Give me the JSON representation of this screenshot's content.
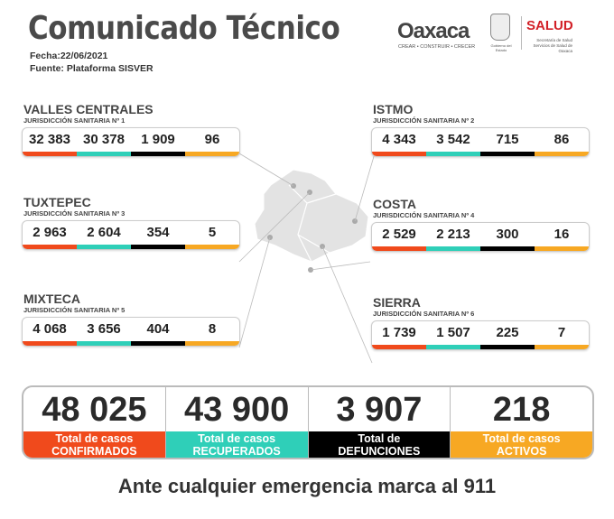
{
  "header": {
    "title": "Comunicado Técnico",
    "fecha": "Fecha:22/06/2021",
    "fuente": "Fuente: Plataforma SISVER"
  },
  "logos": {
    "oaxaca": "Oaxaca",
    "oaxaca_tagline": "CREAR • CONSTRUIR • CRECER",
    "gobierno": "Gobierno del Estado",
    "salud": "SALUD",
    "salud_sub": "Secretaría de Salud Servicios de Salud de Oaxaca"
  },
  "colors": {
    "confirmados": "#f04a1c",
    "recuperados": "#2fcfb8",
    "defunciones": "#000000",
    "activos": "#f7a823"
  },
  "regions": [
    {
      "name": "VALLES CENTRALES",
      "sub": "JURISDICCIÓN SANITARIA Nº 1",
      "values": [
        "32 383",
        "30 378",
        "1 909",
        "96"
      ]
    },
    {
      "name": "ISTMO",
      "sub": "JURISDICCIÓN SANITARIA Nº 2",
      "values": [
        "4 343",
        "3 542",
        "715",
        "86"
      ]
    },
    {
      "name": "TUXTEPEC",
      "sub": "JURISDICCIÓN SANITARIA Nº 3",
      "values": [
        "2 963",
        "2 604",
        "354",
        "5"
      ]
    },
    {
      "name": "COSTA",
      "sub": "JURISDICCIÓN SANITARIA Nº 4",
      "values": [
        "2 529",
        "2 213",
        "300",
        "16"
      ]
    },
    {
      "name": "MIXTECA",
      "sub": "JURISDICCIÓN SANITARIA Nº 5",
      "values": [
        "4 068",
        "3 656",
        "404",
        "8"
      ]
    },
    {
      "name": "SIERRA",
      "sub": "JURISDICCIÓN SANITARIA Nº 6",
      "values": [
        "1 739",
        "1 507",
        "225",
        "7"
      ]
    }
  ],
  "totals": [
    {
      "value": "48 025",
      "line1": "Total de casos",
      "line2": "CONFIRMADOS"
    },
    {
      "value": "43 900",
      "line1": "Total de casos",
      "line2": "RECUPERADOS"
    },
    {
      "value": "3 907",
      "line1": "Total de",
      "line2": "DEFUNCIONES"
    },
    {
      "value": "218",
      "line1": "Total de casos",
      "line2": "ACTIVOS"
    }
  ],
  "footer": "Ante cualquier emergencia marca al 911"
}
